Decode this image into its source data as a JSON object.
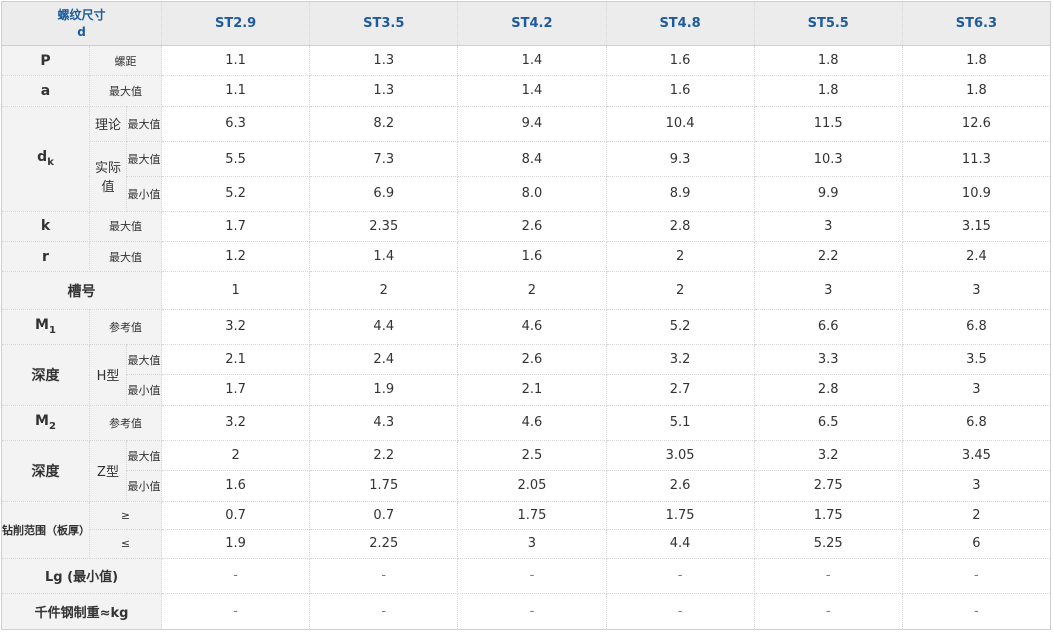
{
  "header": {
    "corner_line1": "螺纹尺寸",
    "corner_line2": "d",
    "columns": [
      "ST2.9",
      "ST3.5",
      "ST4.2",
      "ST4.8",
      "ST5.5",
      "ST6.3"
    ]
  },
  "rows": [
    {
      "label": "P",
      "sub": "螺距",
      "values": [
        "1.1",
        "1.3",
        "1.4",
        "1.6",
        "1.8",
        "1.8"
      ]
    },
    {
      "label": "a",
      "sub": "最大值",
      "values": [
        "1.1",
        "1.3",
        "1.4",
        "1.6",
        "1.8",
        "1.8"
      ]
    },
    {
      "label": "d",
      "label_sub": "k",
      "group": "理论",
      "sub": "最大值",
      "values": [
        "6.3",
        "8.2",
        "9.4",
        "10.4",
        "11.5",
        "12.6"
      ]
    },
    {
      "group": "实际值",
      "sub": "最大值",
      "values": [
        "5.5",
        "7.3",
        "8.4",
        "9.3",
        "10.3",
        "11.3"
      ]
    },
    {
      "sub": "最小值",
      "values": [
        "5.2",
        "6.9",
        "8.0",
        "8.9",
        "9.9",
        "10.9"
      ]
    },
    {
      "label": "k",
      "sub": "最大值",
      "values": [
        "1.7",
        "2.35",
        "2.6",
        "2.8",
        "3",
        "3.15"
      ]
    },
    {
      "label": "r",
      "sub": "最大值",
      "values": [
        "1.2",
        "1.4",
        "1.6",
        "2",
        "2.2",
        "2.4"
      ]
    },
    {
      "label": "槽号",
      "values": [
        "1",
        "2",
        "2",
        "2",
        "3",
        "3"
      ]
    },
    {
      "label": "M",
      "label_sub": "1",
      "sub": "参考值",
      "values": [
        "3.2",
        "4.4",
        "4.6",
        "5.2",
        "6.6",
        "6.8"
      ]
    },
    {
      "label": "深度",
      "group": "H型",
      "sub": "最大值",
      "values": [
        "2.1",
        "2.4",
        "2.6",
        "3.2",
        "3.3",
        "3.5"
      ]
    },
    {
      "sub": "最小值",
      "values": [
        "1.7",
        "1.9",
        "2.1",
        "2.7",
        "2.8",
        "3"
      ]
    },
    {
      "label": "M",
      "label_sub": "2",
      "sub": "参考值",
      "values": [
        "3.2",
        "4.3",
        "4.6",
        "5.1",
        "6.5",
        "6.8"
      ]
    },
    {
      "label": "深度",
      "group": "Z型",
      "sub": "最大值",
      "values": [
        "2",
        "2.2",
        "2.5",
        "3.05",
        "3.2",
        "3.45"
      ]
    },
    {
      "sub": "最小值",
      "values": [
        "1.6",
        "1.75",
        "2.05",
        "2.6",
        "2.75",
        "3"
      ]
    },
    {
      "label": "钻削范围（板厚）",
      "sub": "≥",
      "values": [
        "0.7",
        "0.7",
        "1.75",
        "1.75",
        "1.75",
        "2"
      ]
    },
    {
      "sub": "≤",
      "values": [
        "1.9",
        "2.25",
        "3",
        "4.4",
        "5.25",
        "6"
      ]
    },
    {
      "label": "Lg (最小值)",
      "values": [
        "-",
        "-",
        "-",
        "-",
        "-",
        "-"
      ]
    },
    {
      "label": "千件钢制重≈kg",
      "values": [
        "-",
        "-",
        "-",
        "-",
        "-",
        "-"
      ]
    }
  ]
}
